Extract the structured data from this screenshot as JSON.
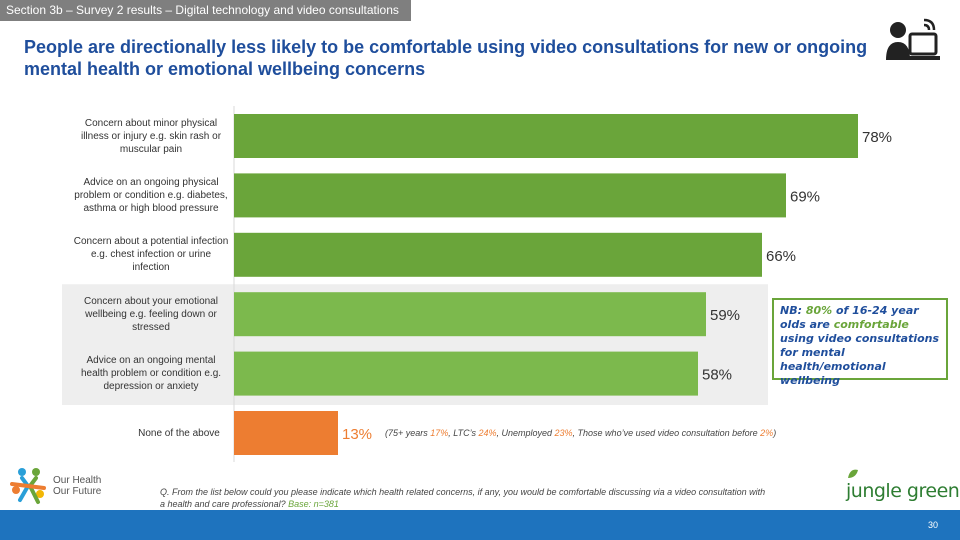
{
  "section_tab": "Section 3b – Survey 2 results – Digital technology and video consultations",
  "headline": "People are directionally less likely to be comfortable using video consultations for new or ongoing mental health or emotional wellbeing concerns",
  "icon": "person-at-computer-icon",
  "colors": {
    "bar_primary": "#6aa53a",
    "bar_secondary": "#7cb94d",
    "bar_none": "#ed7d31",
    "headline": "#1f4e9c",
    "highlight_bg": "#eeeeee",
    "footer": "#1e73be"
  },
  "chart_data": {
    "type": "bar",
    "orientation": "horizontal",
    "categories": [
      "Concern about minor physical illness or injury e.g. skin rash or muscular pain",
      "Advice on an ongoing physical problem or condition e.g. diabetes, asthma or high blood pressure",
      "Concern about a potential infection e.g. chest infection or urine infection",
      "Concern about your emotional wellbeing e.g. feeling down or stressed",
      "Advice on an ongoing mental health problem or condition e.g. depression or anxiety",
      "None of the above"
    ],
    "values": [
      78,
      69,
      66,
      59,
      58,
      13
    ],
    "data_labels": [
      "78%",
      "69%",
      "66%",
      "59%",
      "58%",
      "13%"
    ],
    "unit": "%",
    "xlim": [
      0,
      100
    ],
    "grid": false,
    "highlighted_categories": [
      3,
      4
    ]
  },
  "nb_note": {
    "prefix": "NB: ",
    "highlight": "80%",
    "middle": " of 16-24 year olds are ",
    "highlight2": "comfortable",
    "suffix": " using video consultations for mental health/emotional wellbeing"
  },
  "none_subnote": {
    "p1": "(75+ years ",
    "v1": "17%",
    "p2": ", LTC’s ",
    "v2": "24%",
    "p3": ", Unemployed ",
    "v3": "23%",
    "p4": ", Those who’ve used video consultation before ",
    "v4": "2%",
    "p5": ")"
  },
  "question": {
    "text": "Q. From the list below could you please indicate which health related concerns, if any, you would be comfortable discussing via a video consultation with a health and care professional? ",
    "base": "Base: n=381"
  },
  "logos": {
    "left_line1": "Our Health",
    "left_line2": "Our Future",
    "right": "jungle green"
  },
  "page_number": "30"
}
